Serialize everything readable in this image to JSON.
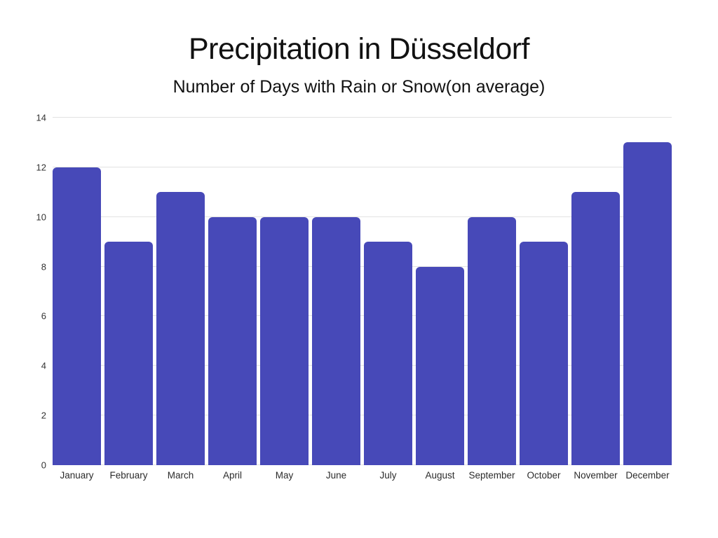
{
  "title": "Precipitation in Düsseldorf",
  "subtitle": "Number of Days with Rain or Snow(on average)",
  "colors": {
    "bar": "#4749b8",
    "grid": "#e2e2e2",
    "title_text": "#111111",
    "axis_text": "#333333",
    "background": "#ffffff"
  },
  "chart_data": {
    "type": "bar",
    "title": "Precipitation in Düsseldorf",
    "subtitle": "Number of Days with Rain or Snow(on average)",
    "categories": [
      "January",
      "February",
      "March",
      "April",
      "May",
      "June",
      "July",
      "August",
      "September",
      "October",
      "November",
      "December"
    ],
    "values": [
      12,
      9,
      11,
      10,
      10,
      10,
      9,
      8,
      10,
      9,
      11,
      13
    ],
    "xlabel": "",
    "ylabel": "",
    "ylim": [
      0,
      14
    ],
    "yticks": [
      0,
      2,
      4,
      6,
      8,
      10,
      12,
      14
    ],
    "grid": true,
    "legend": false,
    "bar_color": "#4749b8"
  }
}
